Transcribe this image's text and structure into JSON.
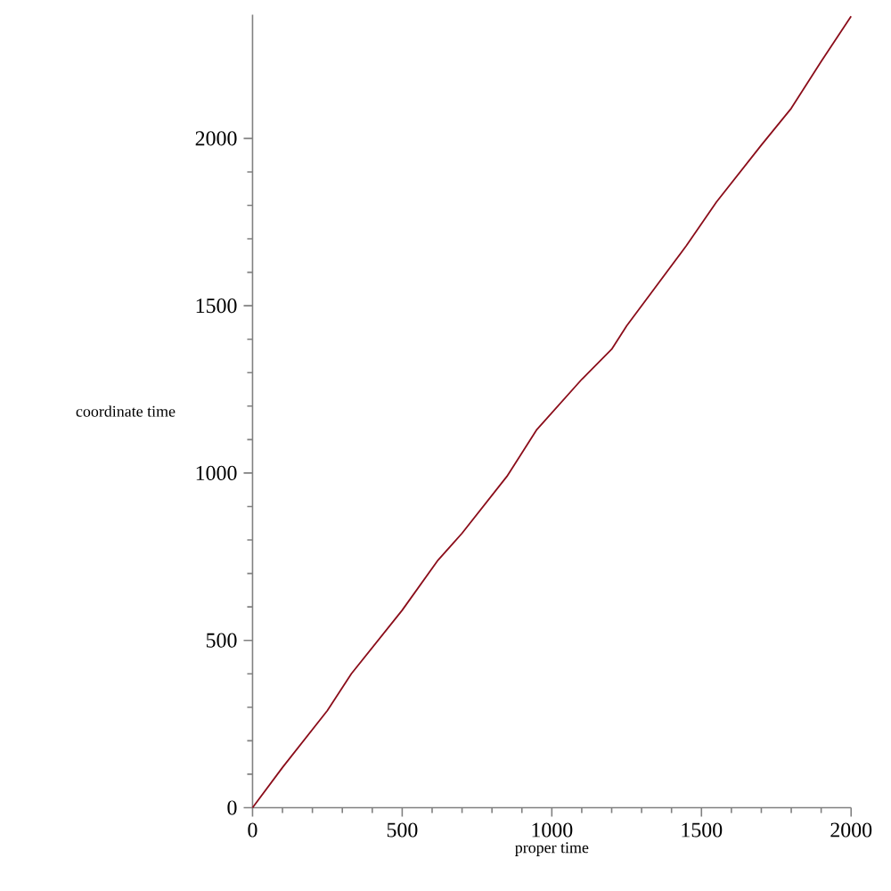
{
  "chart_data": {
    "type": "line",
    "xlabel": "proper time",
    "ylabel": "coordinate time",
    "x": [
      0,
      100,
      250,
      330,
      500,
      620,
      700,
      850,
      950,
      1100,
      1200,
      1250,
      1450,
      1550,
      1700,
      1800,
      1900,
      2000
    ],
    "series": [
      {
        "color": "#8b0d1a",
        "values": [
          0,
          120,
          290,
          400,
          590,
          740,
          820,
          990,
          1130,
          1280,
          1370,
          1440,
          1680,
          1810,
          1980,
          2090,
          2230,
          2365
        ]
      }
    ],
    "xlim": [
      0,
      2000
    ],
    "ylim": [
      0,
      2370
    ],
    "xticks": [
      0,
      500,
      1000,
      1500,
      2000
    ],
    "yticks": [
      0,
      500,
      1000,
      1500,
      2000
    ]
  }
}
